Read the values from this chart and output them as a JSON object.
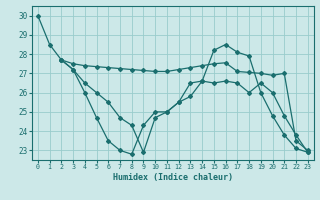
{
  "xlabel": "Humidex (Indice chaleur)",
  "bg_color": "#cce8e8",
  "grid_color": "#99cccc",
  "line_color": "#1a6e6e",
  "xlim": [
    -0.5,
    23.5
  ],
  "ylim": [
    22.5,
    30.5
  ],
  "yticks": [
    23,
    24,
    25,
    26,
    27,
    28,
    29,
    30
  ],
  "xticks": [
    0,
    1,
    2,
    3,
    4,
    5,
    6,
    7,
    8,
    9,
    10,
    11,
    12,
    13,
    14,
    15,
    16,
    17,
    18,
    19,
    20,
    21,
    22,
    23
  ],
  "lines": [
    {
      "x": [
        0,
        1,
        2,
        3,
        4,
        5,
        6,
        7,
        8,
        9,
        10,
        11,
        12,
        13,
        14,
        15,
        16,
        17,
        18,
        19,
        20,
        21,
        22,
        23
      ],
      "y": [
        30.0,
        28.5,
        27.7,
        27.2,
        26.0,
        24.7,
        23.5,
        23.0,
        22.8,
        24.3,
        25.0,
        25.0,
        25.5,
        26.5,
        26.6,
        28.2,
        28.5,
        28.1,
        27.9,
        26.0,
        24.8,
        23.8,
        23.1,
        22.9
      ]
    },
    {
      "x": [
        2,
        3,
        4,
        5,
        6,
        7,
        8,
        9,
        10,
        11,
        12,
        13,
        14,
        15,
        16,
        17,
        18,
        19,
        20,
        21,
        22,
        23
      ],
      "y": [
        27.7,
        27.5,
        27.4,
        27.35,
        27.3,
        27.25,
        27.2,
        27.15,
        27.1,
        27.1,
        27.2,
        27.3,
        27.4,
        27.5,
        27.55,
        27.1,
        27.05,
        27.0,
        26.9,
        27.0,
        23.5,
        23.0
      ]
    },
    {
      "x": [
        2,
        3,
        4,
        5,
        6,
        7,
        8,
        9,
        10,
        11,
        12,
        13,
        14,
        15,
        16,
        17,
        18,
        19,
        20,
        21,
        22,
        23
      ],
      "y": [
        27.7,
        27.2,
        26.5,
        26.0,
        25.5,
        24.7,
        24.3,
        22.9,
        24.7,
        25.0,
        25.5,
        25.8,
        26.6,
        26.5,
        26.6,
        26.5,
        26.0,
        26.5,
        26.0,
        24.8,
        23.8,
        22.9
      ]
    }
  ]
}
